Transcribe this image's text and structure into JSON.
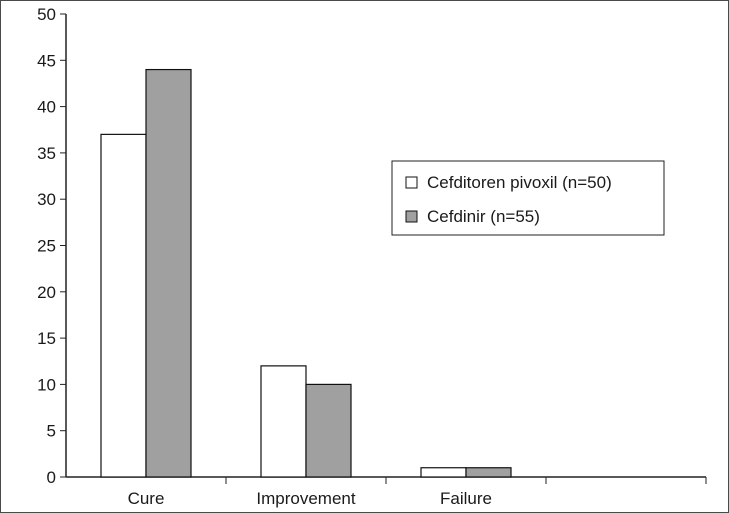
{
  "chart_data": {
    "type": "bar",
    "title": "",
    "xlabel": "",
    "ylabel": "",
    "categories": [
      "Cure",
      "Improvement",
      "Failure"
    ],
    "series": [
      {
        "name": "Cefditoren pivoxil (n=50)",
        "values": [
          37,
          12,
          1
        ],
        "color": "#ffffff"
      },
      {
        "name": "Cefdinir (n=55)",
        "values": [
          44,
          10,
          1
        ],
        "color": "#a0a0a0"
      }
    ],
    "ylim": [
      0,
      50
    ],
    "yticks": [
      0,
      5,
      10,
      15,
      20,
      25,
      30,
      35,
      40,
      45,
      50
    ],
    "x_slots": 4,
    "grid": false,
    "legend_position": "right",
    "colors": {
      "axis": "#222222",
      "bar_edge": "#111111"
    }
  }
}
